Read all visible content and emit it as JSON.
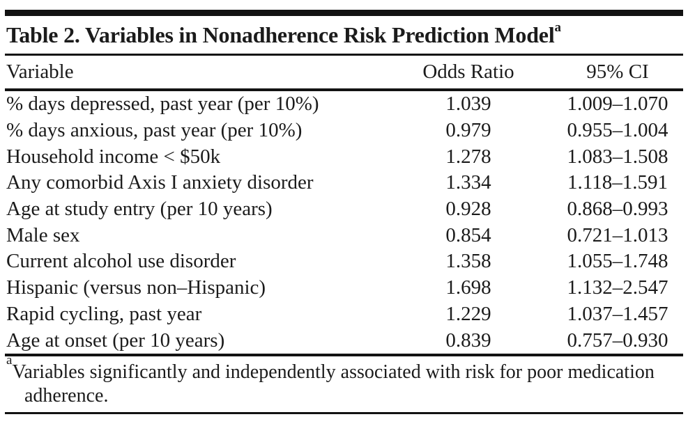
{
  "page": {
    "background": "#ffffff",
    "text_color": "#1b1b1b",
    "rule_color": "#121212"
  },
  "table": {
    "title": "Table 2. Variables in Nonadherence Risk Prediction Model",
    "title_footnote_marker": "a",
    "columns": {
      "variable": "Variable",
      "odds_ratio": "Odds Ratio",
      "ci": "95% CI"
    },
    "rows": [
      {
        "variable": "% days depressed, past year (per 10%)",
        "odds_ratio": "1.039",
        "ci": "1.009–1.070"
      },
      {
        "variable": "% days anxious, past year (per 10%)",
        "odds_ratio": "0.979",
        "ci": "0.955–1.004"
      },
      {
        "variable": "Household income < $50k",
        "odds_ratio": "1.278",
        "ci": "1.083–1.508"
      },
      {
        "variable": "Any comorbid Axis I anxiety disorder",
        "odds_ratio": "1.334",
        "ci": "1.118–1.591"
      },
      {
        "variable": "Age at study entry (per 10 years)",
        "odds_ratio": "0.928",
        "ci": "0.868–0.993"
      },
      {
        "variable": "Male sex",
        "odds_ratio": "0.854",
        "ci": "0.721–1.013"
      },
      {
        "variable": "Current alcohol use disorder",
        "odds_ratio": "1.358",
        "ci": "1.055–1.748"
      },
      {
        "variable": "Hispanic (versus non–Hispanic)",
        "odds_ratio": "1.698",
        "ci": "1.132–2.547"
      },
      {
        "variable": "Rapid cycling, past year",
        "odds_ratio": "1.229",
        "ci": "1.037–1.457"
      },
      {
        "variable": "Age at onset (per 10 years)",
        "odds_ratio": "0.839",
        "ci": "0.757–0.930"
      }
    ],
    "footnote_marker": "a",
    "footnote_text": "Variables significantly and independently associated with risk for poor medication adherence."
  }
}
